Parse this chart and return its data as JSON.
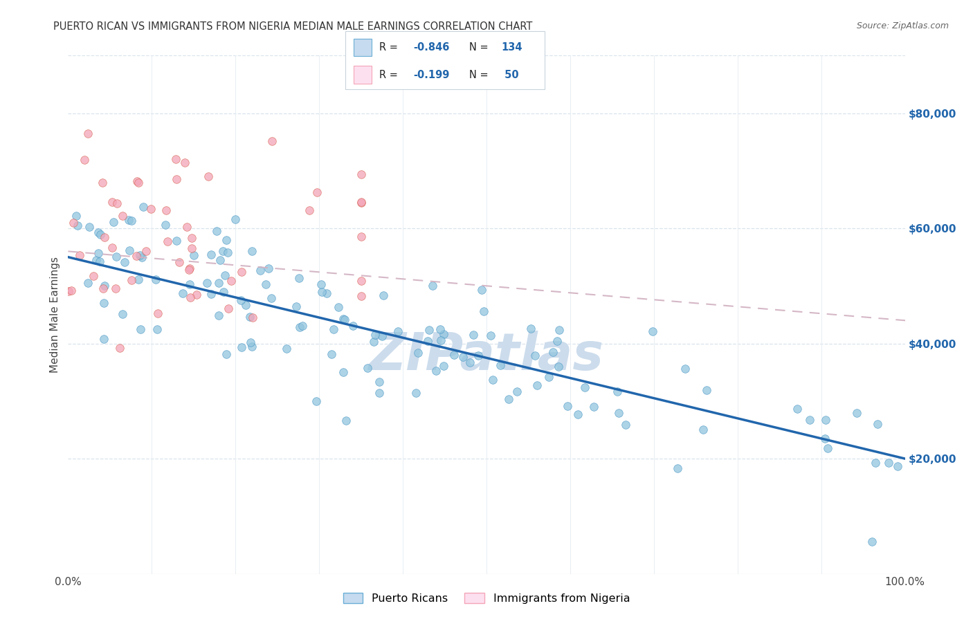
{
  "title": "PUERTO RICAN VS IMMIGRANTS FROM NIGERIA MEDIAN MALE EARNINGS CORRELATION CHART",
  "source": "Source: ZipAtlas.com",
  "ylabel": "Median Male Earnings",
  "r_blue": -0.846,
  "n_blue": 134,
  "r_pink": -0.199,
  "n_pink": 50,
  "blue_color": "#92c5de",
  "blue_edge": "#4393c3",
  "blue_fill": "#c6dbef",
  "pink_color": "#f4a5b8",
  "pink_edge": "#d6604d",
  "pink_fill": "#fde0ef",
  "trend_blue": "#2166ac",
  "trend_pink": "#d1b0c0",
  "watermark": "ZIPatlas",
  "watermark_color": "#ccdcec",
  "xmin": 0.0,
  "xmax": 1.0,
  "ymin": 0,
  "ymax": 90000,
  "yticks": [
    20000,
    40000,
    60000,
    80000
  ],
  "ytick_labels": [
    "$20,000",
    "$40,000",
    "$60,000",
    "$80,000"
  ],
  "legend_label_blue": "Puerto Ricans",
  "legend_label_pink": "Immigrants from Nigeria",
  "blue_intercept": 55000,
  "blue_slope": -35000,
  "pink_intercept": 58000,
  "pink_slope": -12000
}
